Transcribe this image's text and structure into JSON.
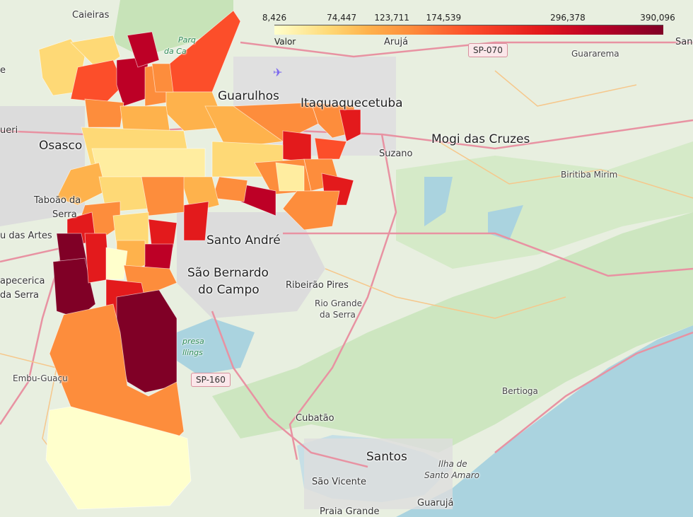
{
  "map": {
    "places": {
      "caieiras": "Caieiras",
      "guarulhos": "Guarulhos",
      "itaquaquecetuba": "Itaquaquecetuba",
      "aruja": "Arujá",
      "santa": "Sant",
      "guararema": "Guararema",
      "osasco": "Osasco",
      "barueri": "ueri",
      "taboao": "Taboão da",
      "serra1": "Serra",
      "embu_artes": "u das Artes",
      "itapecerica": "apecerica",
      "serra2": "da Serra",
      "embu_guacu": "Embu-Guaçu",
      "suzano": "Suzano",
      "mogi": "Mogi das Cruzes",
      "biritiba": "Biritiba Mirim",
      "santo_andre": "Santo André",
      "sbc1": "São Bernardo",
      "sbc2": "do Campo",
      "ribeirao": "Ribeirão Pires",
      "rio_grande1": "Rio Grande",
      "rio_grande2": "da Serra",
      "cubatao": "Cubatão",
      "santos": "Santos",
      "sao_vicente": "São Vicente",
      "praia_grande": "Praia Grande",
      "guaruja": "Guarujá",
      "bertioga": "Bertioga",
      "ilha1": "Ilha de",
      "ilha2": "Santo Amaro",
      "parque1": "Parq",
      "parque2": "da Ca",
      "represa1": "presa",
      "represa2": "llings",
      "left_e": "e"
    },
    "shields": {
      "sp070": "SP-070",
      "sp160": "SP-160"
    }
  },
  "legend": {
    "caption": "Valor",
    "ticks": [
      "8,426",
      "74,447",
      "123,711",
      "174,539",
      "296,378",
      "390,096"
    ],
    "min": 8426,
    "max": 390096,
    "colors": [
      "#ffffcc",
      "#fed976",
      "#feb24c",
      "#fd8d3c",
      "#fc4e2a",
      "#e31a1c",
      "#bd0026",
      "#800026"
    ]
  }
}
